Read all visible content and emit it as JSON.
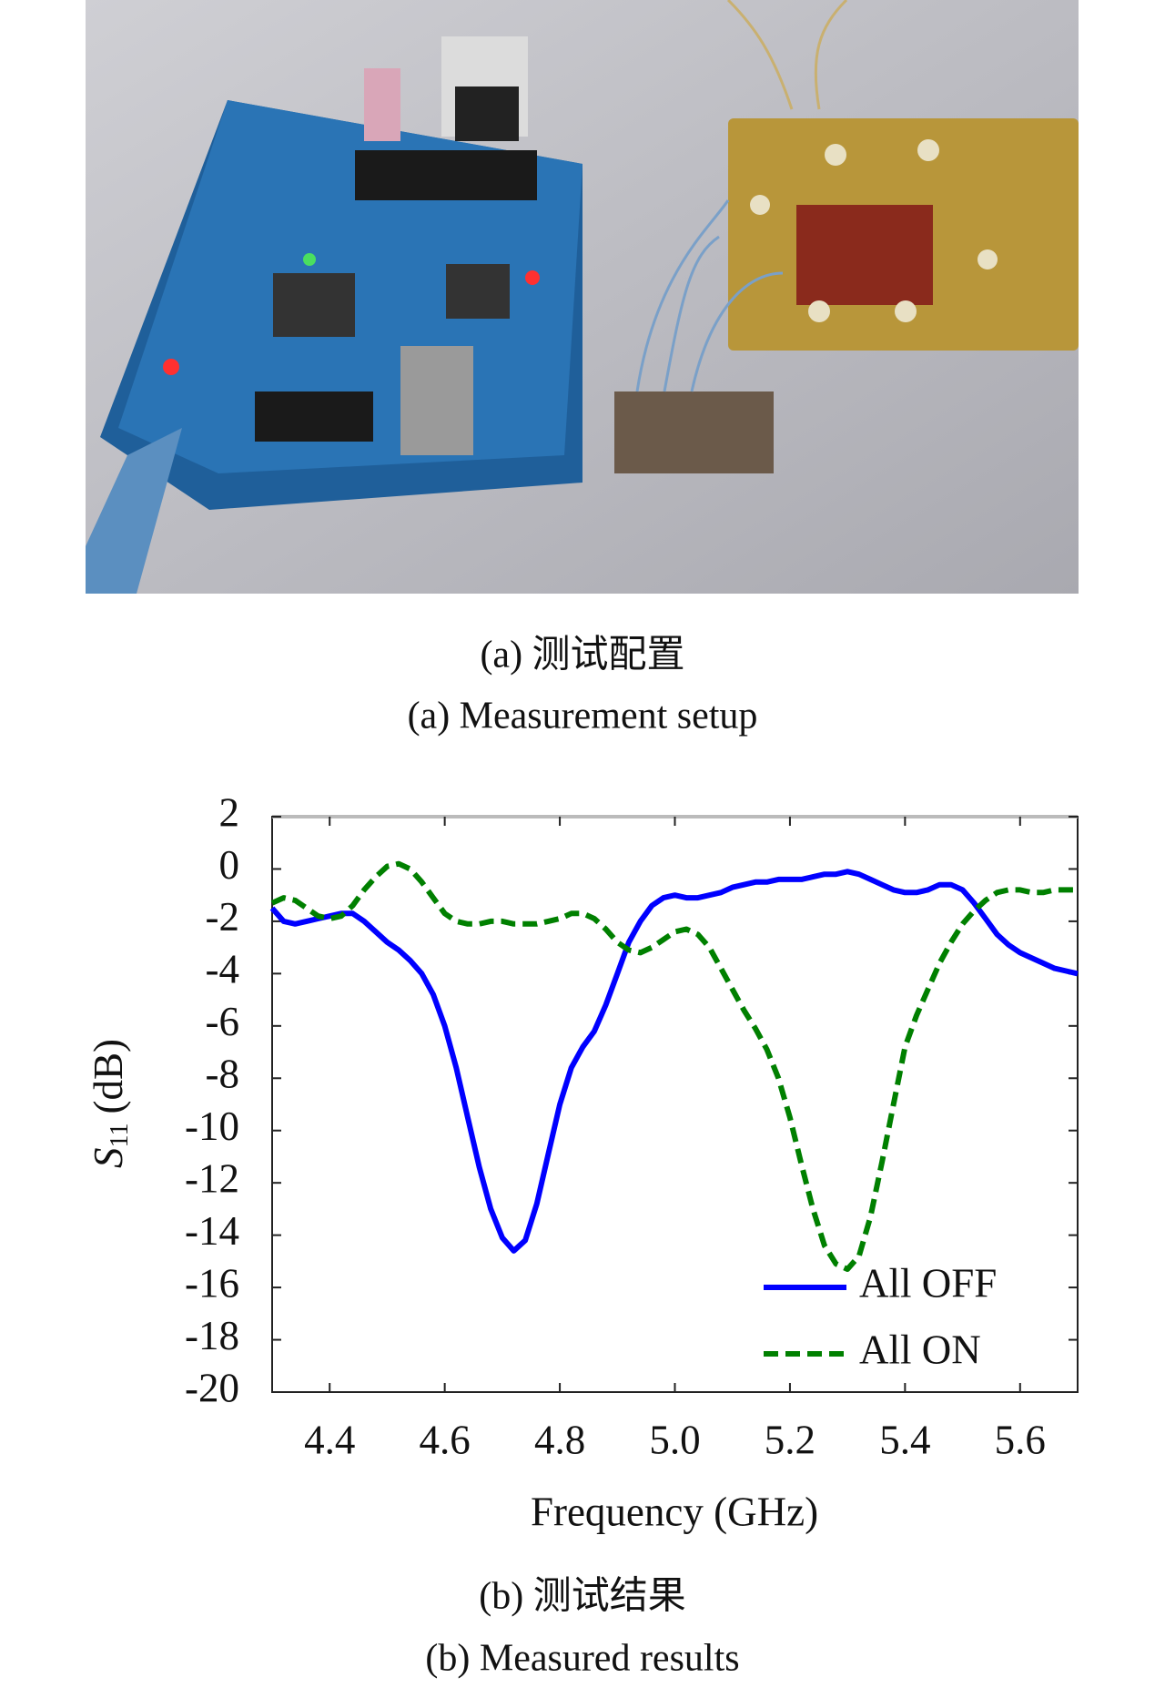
{
  "captions": {
    "a_zh": "(a) 测试配置",
    "a_en": "(a) Measurement setup",
    "b_zh": "(b) 测试结果",
    "b_en": "(b) Measured results"
  },
  "chart_data": {
    "type": "line",
    "xlabel": "Frequency (GHz)",
    "ylabel": {
      "symbol": "S",
      "subscript": "11",
      "unit": "(dB)"
    },
    "xlim": [
      4.3,
      5.7
    ],
    "ylim": [
      -20,
      2
    ],
    "xticks": [
      4.4,
      4.6,
      4.8,
      {
        "value": 5,
        "label": "5.0"
      },
      5.2,
      5.4,
      5.6
    ],
    "yticks": [
      -20,
      -18,
      -16,
      -14,
      -12,
      -10,
      -8,
      -6,
      -4,
      -2,
      0,
      2
    ],
    "legend": "lower right",
    "x": [
      4.3,
      4.32,
      4.34,
      4.36,
      4.38,
      4.4,
      4.42,
      4.44,
      4.46,
      4.48,
      4.5,
      4.52,
      4.54,
      4.56,
      4.58,
      4.6,
      4.62,
      4.64,
      4.66,
      4.68,
      4.7,
      4.72,
      4.74,
      4.76,
      4.78,
      4.8,
      4.82,
      4.84,
      4.86,
      4.88,
      4.9,
      4.92,
      4.94,
      4.96,
      4.98,
      5.0,
      5.02,
      5.04,
      5.06,
      5.08,
      5.1,
      5.12,
      5.14,
      5.16,
      5.18,
      5.2,
      5.22,
      5.24,
      5.26,
      5.28,
      5.3,
      5.32,
      5.34,
      5.36,
      5.38,
      5.4,
      5.42,
      5.44,
      5.46,
      5.48,
      5.5,
      5.52,
      5.54,
      5.56,
      5.58,
      5.6,
      5.62,
      5.64,
      5.66,
      5.68,
      5.7
    ],
    "series": [
      {
        "name": "All OFF",
        "color": "#0000ff",
        "linestyle": "solid",
        "values": [
          -1.5,
          -2.0,
          -2.1,
          -2.0,
          -1.9,
          -1.8,
          -1.7,
          -1.7,
          -2.0,
          -2.4,
          -2.8,
          -3.1,
          -3.5,
          -4.0,
          -4.8,
          -6.0,
          -7.6,
          -9.5,
          -11.4,
          -13.0,
          -14.1,
          -14.6,
          -14.2,
          -12.8,
          -10.9,
          -9.0,
          -7.6,
          -6.8,
          -6.2,
          -5.2,
          -4.0,
          -2.8,
          -2.0,
          -1.4,
          -1.1,
          -1.0,
          -1.1,
          -1.1,
          -1.0,
          -0.9,
          -0.7,
          -0.6,
          -0.5,
          -0.5,
          -0.4,
          -0.4,
          -0.4,
          -0.3,
          -0.2,
          -0.2,
          -0.1,
          -0.2,
          -0.4,
          -0.6,
          -0.8,
          -0.9,
          -0.9,
          -0.8,
          -0.6,
          -0.6,
          -0.8,
          -1.3,
          -1.9,
          -2.5,
          -2.9,
          -3.2,
          -3.4,
          -3.6,
          -3.8,
          -3.9,
          -4.0
        ]
      },
      {
        "name": "All ON",
        "color": "#008000",
        "linestyle": "dashed",
        "values": [
          -1.3,
          -1.1,
          -1.2,
          -1.5,
          -1.8,
          -1.9,
          -1.8,
          -1.4,
          -0.8,
          -0.3,
          0.1,
          0.2,
          0.0,
          -0.5,
          -1.1,
          -1.7,
          -2.0,
          -2.1,
          -2.1,
          -2.0,
          -2.0,
          -2.1,
          -2.1,
          -2.1,
          -2.0,
          -1.9,
          -1.7,
          -1.7,
          -1.9,
          -2.3,
          -2.8,
          -3.1,
          -3.2,
          -3.0,
          -2.7,
          -2.4,
          -2.3,
          -2.5,
          -3.0,
          -3.8,
          -4.6,
          -5.4,
          -6.1,
          -6.9,
          -8.0,
          -9.5,
          -11.3,
          -13.0,
          -14.4,
          -15.1,
          -15.3,
          -14.8,
          -13.3,
          -11.2,
          -9.0,
          -6.8,
          -5.6,
          -4.6,
          -3.6,
          -2.8,
          -2.1,
          -1.6,
          -1.2,
          -0.9,
          -0.8,
          -0.8,
          -0.9,
          -0.9,
          -0.8,
          -0.8,
          -0.8
        ]
      }
    ]
  }
}
